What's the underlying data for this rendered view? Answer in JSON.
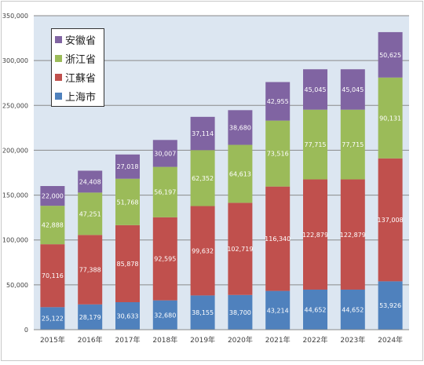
{
  "chart_data": {
    "type": "bar",
    "stacked": true,
    "categories": [
      "2015年",
      "2016年",
      "2017年",
      "2018年",
      "2019年",
      "2020年",
      "2021年",
      "2022年",
      "2023年",
      "2024年"
    ],
    "series": [
      {
        "name": "上海市",
        "color": "#4f81bd",
        "values": [
          25122,
          28179,
          30633,
          32680,
          38155,
          38700,
          43214,
          44652,
          44652,
          53926
        ],
        "labels": [
          "25,122",
          "28,179",
          "30,633",
          "32,680",
          "38,155",
          "38,700",
          "43,214",
          "44,652",
          "44,652",
          "53,926"
        ]
      },
      {
        "name": "江蘇省",
        "color": "#c0504d",
        "values": [
          70116,
          77388,
          85878,
          92595,
          99632,
          102719,
          116340,
          122879,
          122879,
          137008
        ],
        "labels": [
          "70,116",
          "77,388",
          "85,878",
          "92,595",
          "99,632",
          "102,719",
          "116,340",
          "122,879",
          "122,879",
          "137,008"
        ]
      },
      {
        "name": "浙江省",
        "color": "#9bbb59",
        "values": [
          42888,
          47251,
          51768,
          56197,
          62352,
          64613,
          73516,
          77715,
          77715,
          90131
        ],
        "labels": [
          "42,888",
          "47,251",
          "51,768",
          "56,197",
          "62,352",
          "64,613",
          "73,516",
          "77,715",
          "77,715",
          "90,131"
        ]
      },
      {
        "name": "安徽省",
        "color": "#8064a2",
        "values": [
          22000,
          24408,
          27018,
          30007,
          37114,
          38680,
          42955,
          45045,
          45045,
          50625
        ],
        "labels": [
          "22,000",
          "24,408",
          "27,018",
          "30,007",
          "37,114",
          "38,680",
          "42,955",
          "45,045",
          "45,045",
          "50,625"
        ]
      }
    ],
    "legend_order": [
      "安徽省",
      "浙江省",
      "江蘇省",
      "上海市"
    ],
    "yticks": [
      "0",
      "50,000",
      "100,000",
      "150,000",
      "200,000",
      "250,000",
      "300,000",
      "350,000"
    ],
    "ylim": [
      0,
      350000
    ],
    "grid": true,
    "legend_position": "top-left",
    "plot_background": "#dce6f1",
    "title": "",
    "xlabel": "",
    "ylabel": ""
  }
}
